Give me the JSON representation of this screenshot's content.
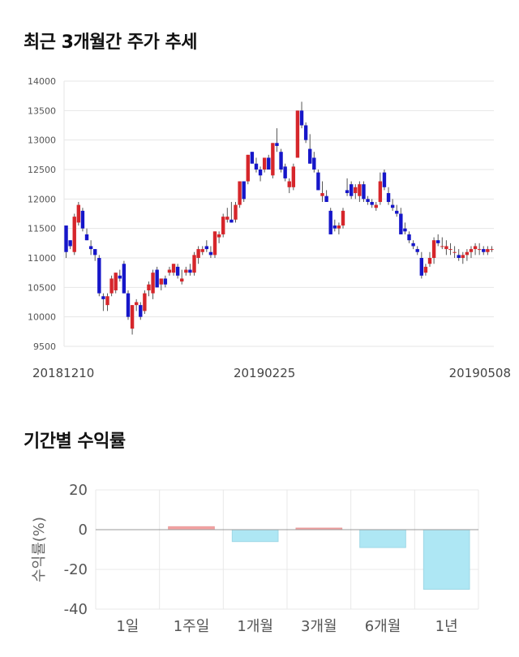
{
  "sections": {
    "price_title": "최근 3개월간 주가 추세",
    "returns_title": "기간별 수익률"
  },
  "chart_data": [
    {
      "type": "candlestick",
      "title": "최근 3개월간 주가 추세",
      "ylim": [
        9500,
        14000
      ],
      "yticks": [
        9500,
        10000,
        10500,
        11000,
        11500,
        12000,
        12500,
        13000,
        13500,
        14000
      ],
      "xtick_labels": [
        {
          "index": 0,
          "label": "20181210"
        },
        {
          "index": 48,
          "label": "20190225"
        },
        {
          "index": 103,
          "label": "20190508"
        }
      ],
      "grid": true,
      "colors": {
        "up": "#d6262b",
        "down": "#1616c9",
        "wick": "#555555"
      },
      "candles": [
        [
          11550,
          11550,
          11000,
          11100
        ],
        [
          11300,
          11300,
          11150,
          11200
        ],
        [
          11100,
          11750,
          11050,
          11700
        ],
        [
          11600,
          11950,
          11550,
          11900
        ],
        [
          11800,
          11850,
          11450,
          11500
        ],
        [
          11400,
          11500,
          11300,
          11300
        ],
        [
          11200,
          11300,
          11050,
          11150
        ],
        [
          11150,
          11150,
          10950,
          11050
        ],
        [
          11000,
          11050,
          10350,
          10400
        ],
        [
          10350,
          10400,
          10100,
          10300
        ],
        [
          10200,
          10400,
          10100,
          10350
        ],
        [
          10400,
          10700,
          10350,
          10650
        ],
        [
          10450,
          10750,
          10400,
          10750
        ],
        [
          10700,
          10800,
          10600,
          10650
        ],
        [
          10900,
          10950,
          10400,
          10400
        ],
        [
          10400,
          10450,
          9950,
          10000
        ],
        [
          9800,
          10200,
          9700,
          10200
        ],
        [
          10200,
          10300,
          10100,
          10250
        ],
        [
          10200,
          10250,
          9950,
          10000
        ],
        [
          10100,
          10450,
          10050,
          10400
        ],
        [
          10450,
          10600,
          10350,
          10550
        ],
        [
          10400,
          10800,
          10300,
          10750
        ],
        [
          10800,
          10850,
          10500,
          10500
        ],
        [
          10550,
          10650,
          10450,
          10650
        ],
        [
          10650,
          10700,
          10500,
          10550
        ],
        [
          10750,
          10850,
          10700,
          10800
        ],
        [
          10750,
          10900,
          10700,
          10900
        ],
        [
          10850,
          10900,
          10650,
          10700
        ],
        [
          10600,
          10800,
          10550,
          10650
        ],
        [
          10750,
          10850,
          10700,
          10800
        ],
        [
          10800,
          10900,
          10700,
          10750
        ],
        [
          10750,
          11100,
          10700,
          11050
        ],
        [
          11000,
          11200,
          10900,
          11150
        ],
        [
          11100,
          11200,
          11050,
          11150
        ],
        [
          11200,
          11300,
          11100,
          11150
        ],
        [
          11100,
          11200,
          11000,
          11050
        ],
        [
          11050,
          11450,
          11000,
          11450
        ],
        [
          11350,
          11450,
          11250,
          11400
        ],
        [
          11400,
          11750,
          11350,
          11700
        ],
        [
          11650,
          11850,
          11600,
          11700
        ],
        [
          11650,
          11950,
          11600,
          11600
        ],
        [
          11650,
          11950,
          11600,
          11900
        ],
        [
          11900,
          12300,
          11850,
          12300
        ],
        [
          12300,
          12300,
          11950,
          12000
        ],
        [
          12300,
          12750,
          12250,
          12750
        ],
        [
          12800,
          12800,
          12600,
          12600
        ],
        [
          12600,
          12700,
          12450,
          12500
        ],
        [
          12500,
          12550,
          12300,
          12400
        ],
        [
          12500,
          12700,
          12450,
          12700
        ],
        [
          12700,
          12750,
          12500,
          12500
        ],
        [
          12400,
          12950,
          12350,
          12950
        ],
        [
          12950,
          13200,
          12800,
          12900
        ],
        [
          12800,
          12850,
          12450,
          12500
        ],
        [
          12550,
          12600,
          12300,
          12350
        ],
        [
          12200,
          12350,
          12100,
          12300
        ],
        [
          12200,
          12600,
          12150,
          12550
        ],
        [
          12700,
          13500,
          12700,
          13500
        ],
        [
          13500,
          13650,
          13200,
          13250
        ],
        [
          13250,
          13300,
          12950,
          13000
        ],
        [
          12850,
          13100,
          12600,
          12600
        ],
        [
          12700,
          12800,
          12450,
          12500
        ],
        [
          12450,
          12500,
          12150,
          12150
        ],
        [
          12050,
          12300,
          11950,
          12100
        ],
        [
          12050,
          12150,
          11950,
          11950
        ],
        [
          11800,
          11850,
          11400,
          11400
        ],
        [
          11550,
          11650,
          11450,
          11500
        ],
        [
          11500,
          11600,
          11400,
          11550
        ],
        [
          11550,
          11850,
          11500,
          11800
        ],
        [
          12150,
          12350,
          12050,
          12100
        ],
        [
          12250,
          12300,
          12000,
          12050
        ],
        [
          12100,
          12250,
          12000,
          12200
        ],
        [
          12050,
          12300,
          11950,
          12250
        ],
        [
          12250,
          12300,
          11950,
          12000
        ],
        [
          12000,
          12050,
          11900,
          11950
        ],
        [
          11950,
          12000,
          11850,
          11900
        ],
        [
          11850,
          11950,
          11800,
          11900
        ],
        [
          11950,
          12450,
          11900,
          12300
        ],
        [
          12450,
          12500,
          12150,
          12200
        ],
        [
          12100,
          12200,
          11900,
          11950
        ],
        [
          11900,
          12000,
          11800,
          11850
        ],
        [
          11800,
          11900,
          11700,
          11750
        ],
        [
          11750,
          11850,
          11400,
          11400
        ],
        [
          11500,
          11600,
          11400,
          11450
        ],
        [
          11400,
          11450,
          11250,
          11300
        ],
        [
          11250,
          11300,
          11150,
          11200
        ],
        [
          11150,
          11200,
          11050,
          11100
        ],
        [
          11000,
          11100,
          10650,
          10700
        ],
        [
          10750,
          10900,
          10700,
          10850
        ],
        [
          10900,
          11100,
          10850,
          11000
        ],
        [
          11000,
          11350,
          10900,
          11300
        ],
        [
          11300,
          11400,
          11200,
          11250
        ],
        [
          11200,
          11350,
          11150,
          11200
        ],
        [
          11150,
          11300,
          11050,
          11200
        ],
        [
          11150,
          11250,
          11050,
          11150
        ],
        [
          11100,
          11200,
          11000,
          11100
        ],
        [
          11050,
          11150,
          10950,
          11000
        ],
        [
          11000,
          11100,
          10900,
          11050
        ],
        [
          11050,
          11150,
          10950,
          11100
        ],
        [
          11100,
          11200,
          11000,
          11150
        ],
        [
          11150,
          11250,
          11050,
          11200
        ],
        [
          11150,
          11250,
          11050,
          11150
        ],
        [
          11150,
          11200,
          11050,
          11100
        ],
        [
          11100,
          11200,
          11050,
          11150
        ],
        [
          11150,
          11200,
          11100,
          11150
        ]
      ]
    },
    {
      "type": "bar",
      "title": "기간별 수익률",
      "ylabel": "수익률(%)",
      "categories": [
        "1일",
        "1주일",
        "1개월",
        "3개월",
        "6개월",
        "1년"
      ],
      "values": [
        0,
        1.5,
        -6,
        0.8,
        -9,
        -30
      ],
      "ylim": [
        -40,
        20
      ],
      "yticks": [
        -40,
        -20,
        0,
        20
      ],
      "grid": true,
      "colors": {
        "positive": "#f4a3a3",
        "negative": "#aee7f4"
      }
    }
  ]
}
